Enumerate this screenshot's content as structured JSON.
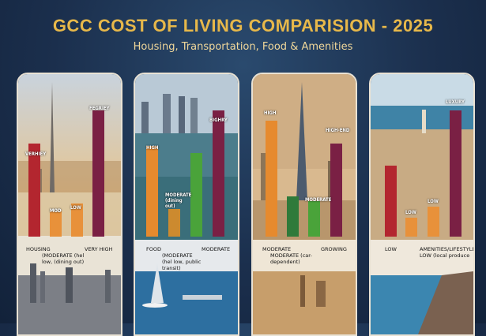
{
  "header": {
    "title": "GCC COST OF LIVING COMPARISION - 2025",
    "subtitle": "Housing, Transportation, Food & Amenities"
  },
  "cards": [
    {
      "bars": [
        {
          "label": "VERHIEY",
          "level": 0.74,
          "color": "#b3262f"
        },
        {
          "label": "MOD",
          "level": 0.2,
          "color": "#e8913a"
        },
        {
          "label": "LOW",
          "level": 0.26,
          "color": "#e8913a"
        },
        {
          "label": "FEGRIEY",
          "level": 1.0,
          "color": "#7a2044"
        }
      ],
      "notes": [
        "HOUSING",
        "(MODERATE (hel low, (dining out)",
        "VERY HIGH"
      ]
    },
    {
      "bars": [
        {
          "label": "HIGH",
          "level": 0.72,
          "color": "#e68a2e"
        },
        {
          "label": "MODERATE (dining out)",
          "level": 0.22,
          "color": "#cc8a2f"
        },
        {
          "label": "",
          "level": 0.66,
          "color": "#4aa33a"
        },
        {
          "label": "BIGHRY",
          "level": 1.0,
          "color": "#7a2044"
        }
      ],
      "notes": [
        "FOOD",
        "(MODERATE (hel low, public transit)",
        "MODERATE"
      ]
    },
    {
      "bars": [
        {
          "label": "HIGH",
          "level": 0.92,
          "color": "#e68a2e"
        },
        {
          "label": "",
          "level": 0.32,
          "color": "#2f7a3a"
        },
        {
          "label": "MODERATE",
          "level": 0.28,
          "color": "#4aa33a"
        },
        {
          "label": "HIGH-END",
          "level": 0.74,
          "color": "#7a2044"
        }
      ],
      "notes": [
        "MODERATE",
        "MODERATE (car-dependent)",
        "GROWING"
      ]
    },
    {
      "bars": [
        {
          "label": "",
          "level": 0.56,
          "color": "#b3262f"
        },
        {
          "label": "LOW",
          "level": 0.15,
          "color": "#e8913a"
        },
        {
          "label": "LOW",
          "level": 0.24,
          "color": "#e8913a"
        },
        {
          "label": "LUXURY",
          "level": 1.0,
          "color": "#7a2044"
        }
      ],
      "notes": [
        "LOW",
        "AMENITIES/LIFESTYLE LOW (local produce",
        ""
      ]
    }
  ]
}
